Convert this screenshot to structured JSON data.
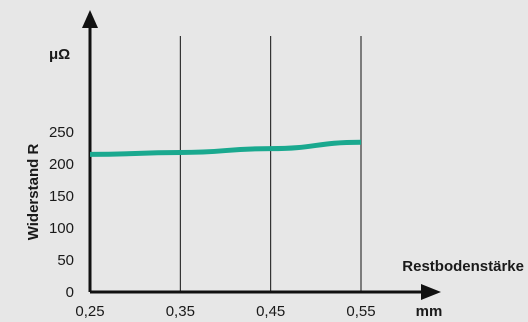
{
  "chart_data": {
    "type": "line",
    "title": "",
    "xlabel": "Restbodenstärke",
    "x_unit": "mm",
    "ylabel": "Widerstand R",
    "y_unit": "μΩ",
    "x_ticks": [
      "0,25",
      "0,35",
      "0,45",
      "0,55"
    ],
    "x_tick_values": [
      0.25,
      0.35,
      0.45,
      0.55
    ],
    "y_ticks": [
      "0",
      "50",
      "100",
      "150",
      "200",
      "250"
    ],
    "y_tick_values": [
      0,
      50,
      100,
      150,
      200,
      250
    ],
    "xlim": [
      0.25,
      0.55
    ],
    "ylim": [
      0,
      250
    ],
    "grid": "vertical",
    "line_color": "#1aa98f",
    "series": [
      {
        "x": [
          0.25,
          0.35,
          0.45,
          0.55
        ],
        "y": [
          215,
          218,
          224,
          234
        ]
      }
    ]
  }
}
